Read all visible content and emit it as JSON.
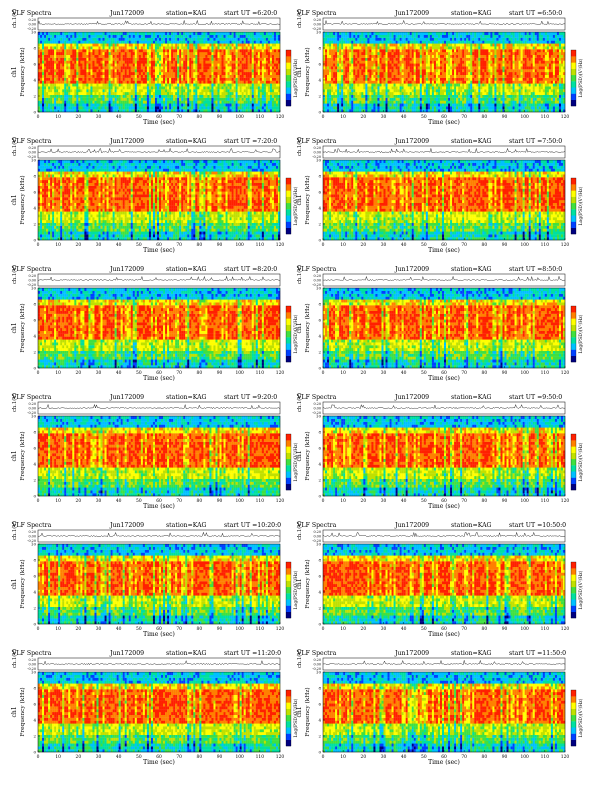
{
  "chart_data": {
    "type": "heatmap",
    "common": {
      "title": "VLF Spectra",
      "date": "Jun172009",
      "station": "station=KAG",
      "start_prefix": "start  UT =",
      "xlabel": "Time  (sec)",
      "xlim": [
        0,
        120
      ],
      "xticks": [
        0,
        10,
        20,
        30,
        40,
        50,
        60,
        70,
        80,
        90,
        100,
        110,
        120
      ],
      "ylabel": "Frequency  (kHz)",
      "ylim": [
        0,
        10
      ],
      "yticks": [
        0,
        2,
        4,
        6,
        8,
        10
      ],
      "series_label": "ch1",
      "amp_label": "ch.1(V)",
      "amp_ticks": [
        "0.20",
        "0.00",
        "-0.20"
      ],
      "colorbar_label": "Log(PSD)(V²/Hz)",
      "colormap": [
        "#000080",
        "#0040ff",
        "#00c0ff",
        "#00e0a0",
        "#40e040",
        "#c0e000",
        "#ffff00",
        "#ff8000",
        "#ff2000"
      ]
    },
    "panels": [
      {
        "start_ut": "6:20:0"
      },
      {
        "start_ut": "6:50:0"
      },
      {
        "start_ut": "7:20:0"
      },
      {
        "start_ut": "7:50:0"
      },
      {
        "start_ut": "8:20:0"
      },
      {
        "start_ut": "8:50:0"
      },
      {
        "start_ut": "9:20:0"
      },
      {
        "start_ut": "9:50:0"
      },
      {
        "start_ut": "10:20:0"
      },
      {
        "start_ut": "10:50:0"
      },
      {
        "start_ut": "11:20:0"
      },
      {
        "start_ut": "11:50:0"
      }
    ]
  }
}
